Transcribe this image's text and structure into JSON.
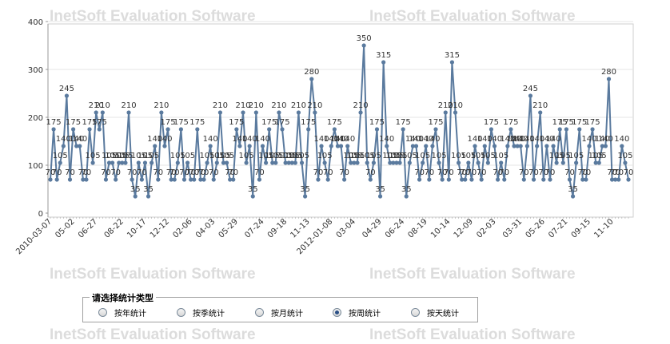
{
  "watermark": "InetSoft Evaluation Software",
  "chart_data": {
    "type": "line",
    "y_ticks": [
      0,
      100,
      200,
      300,
      400
    ],
    "ylim": [
      0,
      410
    ],
    "x_tick_labels": [
      "2010-03-07",
      "05-02",
      "06-27",
      "08-22",
      "10-17",
      "12-12",
      "02-06",
      "04-03",
      "05-29",
      "07-24",
      "09-18",
      "11-13",
      "2012-01-08",
      "03-04",
      "04-29",
      "06-24",
      "08-19",
      "10-14",
      "12-09",
      "02-03",
      "03-31",
      "05-26",
      "07-21",
      "09-15",
      "11-10"
    ],
    "grid": true,
    "line_color": "#5a7a9e",
    "values": [
      70,
      175,
      70,
      105,
      140,
      245,
      70,
      175,
      140,
      140,
      70,
      70,
      175,
      105,
      210,
      175,
      210,
      70,
      105,
      105,
      70,
      105,
      105,
      105,
      210,
      70,
      35,
      105,
      70,
      105,
      35,
      105,
      140,
      70,
      210,
      140,
      175,
      70,
      70,
      105,
      175,
      70,
      105,
      70,
      70,
      175,
      70,
      70,
      105,
      140,
      70,
      105,
      210,
      105,
      105,
      70,
      70,
      175,
      140,
      210,
      105,
      140,
      35,
      210,
      70,
      140,
      105,
      175,
      105,
      105,
      210,
      175,
      105,
      105,
      105,
      105,
      210,
      105,
      35,
      175,
      280,
      210,
      70,
      140,
      105,
      70,
      140,
      175,
      140,
      140,
      70,
      140,
      105,
      105,
      105,
      210,
      350,
      105,
      70,
      105,
      175,
      35,
      315,
      140,
      105,
      105,
      105,
      105,
      175,
      35,
      105,
      140,
      140,
      70,
      105,
      140,
      70,
      140,
      175,
      105,
      70,
      210,
      70,
      315,
      210,
      105,
      70,
      70,
      105,
      70,
      140,
      105,
      70,
      140,
      105,
      175,
      140,
      70,
      105,
      70,
      140,
      175,
      140,
      140,
      140,
      70,
      140,
      245,
      70,
      140,
      210,
      70,
      140,
      70,
      140,
      105,
      175,
      105,
      175,
      70,
      35,
      105,
      175,
      70,
      70,
      140,
      175,
      105,
      105,
      140,
      140,
      280,
      70,
      70,
      70,
      140,
      105,
      70
    ]
  },
  "radio_group": {
    "title": "请选择统计类型",
    "options": [
      {
        "label": "按年统计",
        "selected": false
      },
      {
        "label": "按季统计",
        "selected": false
      },
      {
        "label": "按月统计",
        "selected": false
      },
      {
        "label": "按周统计",
        "selected": true
      },
      {
        "label": "按天统计",
        "selected": false
      }
    ]
  }
}
